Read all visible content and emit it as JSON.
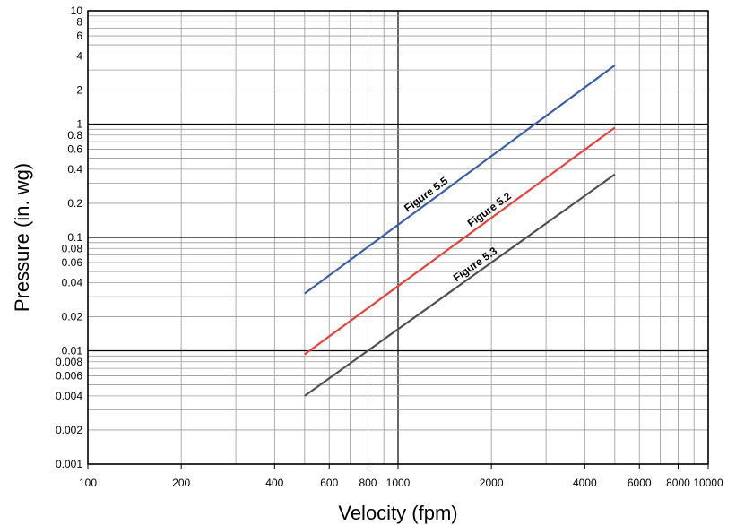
{
  "chart_data": {
    "type": "line",
    "title": "",
    "xlabel": "Velocity (fpm)",
    "ylabel": "Pressure (in. wg)",
    "xscale": "log",
    "yscale": "log",
    "xlim": [
      100,
      10000
    ],
    "ylim": [
      0.001,
      10
    ],
    "grid": true,
    "x_ticks": [
      {
        "value": 100,
        "label": "100"
      },
      {
        "value": 200,
        "label": "200"
      },
      {
        "value": 400,
        "label": "400"
      },
      {
        "value": 600,
        "label": "600"
      },
      {
        "value": 800,
        "label": "800"
      },
      {
        "value": 1000,
        "label": "1000"
      },
      {
        "value": 2000,
        "label": "2000"
      },
      {
        "value": 4000,
        "label": "4000"
      },
      {
        "value": 6000,
        "label": "6000"
      },
      {
        "value": 8000,
        "label": "8000"
      },
      {
        "value": 10000,
        "label": "10000"
      }
    ],
    "y_ticks": [
      {
        "value": 0.001,
        "label": "0.001"
      },
      {
        "value": 0.002,
        "label": "0.002"
      },
      {
        "value": 0.004,
        "label": "0.004"
      },
      {
        "value": 0.006,
        "label": "0.006"
      },
      {
        "value": 0.008,
        "label": "0.008"
      },
      {
        "value": 0.01,
        "label": "0.01"
      },
      {
        "value": 0.02,
        "label": "0.02"
      },
      {
        "value": 0.04,
        "label": "0.04"
      },
      {
        "value": 0.06,
        "label": "0.06"
      },
      {
        "value": 0.08,
        "label": "0.08"
      },
      {
        "value": 0.1,
        "label": "0.1"
      },
      {
        "value": 0.2,
        "label": "0.2"
      },
      {
        "value": 0.4,
        "label": "0.4"
      },
      {
        "value": 0.6,
        "label": "0.6"
      },
      {
        "value": 0.8,
        "label": "0.8"
      },
      {
        "value": 1,
        "label": "1"
      },
      {
        "value": 2,
        "label": "2"
      },
      {
        "value": 4,
        "label": "4"
      },
      {
        "value": 6,
        "label": "6"
      },
      {
        "value": 8,
        "label": "8"
      },
      {
        "value": 10,
        "label": "10"
      }
    ],
    "series": [
      {
        "name": "Figure 5.5",
        "color": "#3a5fa8",
        "x": [
          500,
          5000
        ],
        "y": [
          0.032,
          3.3
        ],
        "label_at": 1250
      },
      {
        "name": "Figure 5.2",
        "color": "#e8413c",
        "x": [
          500,
          5000
        ],
        "y": [
          0.0093,
          0.93
        ],
        "label_at": 2000
      },
      {
        "name": "Figure 5.3",
        "color": "#505050",
        "x": [
          500,
          5000
        ],
        "y": [
          0.004,
          0.36
        ],
        "label_at": 1800
      }
    ]
  }
}
